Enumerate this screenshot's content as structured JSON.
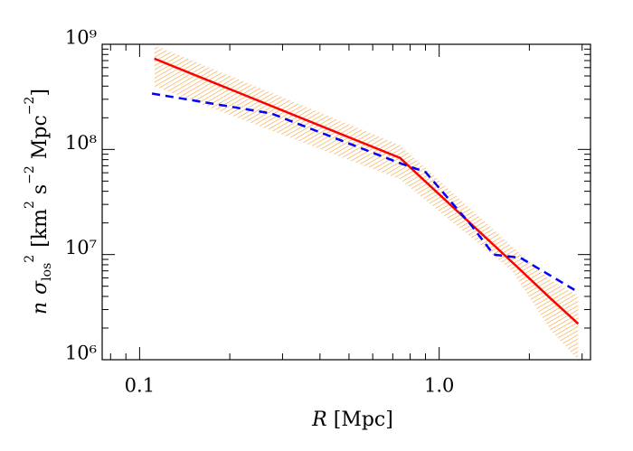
{
  "chart_data": {
    "type": "line",
    "xlabel": [
      "R",
      "[Mpc]"
    ],
    "ylabel": [
      "n",
      "σ",
      "los",
      "2",
      "[km",
      "2",
      "s",
      "−2",
      "Mpc",
      "−2",
      "]"
    ],
    "xscale": "log",
    "yscale": "log",
    "xlim": [
      0.075,
      3.2
    ],
    "ylim": [
      1000000,
      1000000000
    ],
    "xticks": [
      0.1,
      {
        "value": 1.0,
        "label": "1.0"
      }
    ],
    "yticks": [
      {
        "value": 1000000,
        "label": "10⁶"
      },
      {
        "value": 10000000,
        "label": "10⁷"
      },
      {
        "value": 100000000,
        "label": "10⁸"
      },
      {
        "value": 1000000000,
        "label": "10⁹"
      }
    ],
    "minor_ticks": true,
    "band": {
      "color": "#f5a540",
      "x": [
        0.112,
        0.74,
        1.75,
        2.36,
        2.91
      ],
      "upper": [
        980000000,
        110000000,
        12000000,
        5700000,
        4100000
      ],
      "lower": [
        400000000,
        52000000,
        7000000,
        1900000,
        1000000
      ]
    },
    "series": [
      {
        "color": "#ff0000",
        "dash": false,
        "x": [
          0.112,
          0.74,
          1.75,
          2.36,
          2.91
        ],
        "values": [
          730000000,
          83000000,
          8500000,
          3800000,
          2200000
        ]
      },
      {
        "color": "#0000ff",
        "dash": true,
        "x": [
          0.11,
          0.275,
          0.73,
          0.9,
          1.28,
          1.52,
          1.87,
          2.23,
          2.91
        ],
        "values": [
          340000000,
          220000000,
          75000000,
          61000000,
          19000000,
          10000000,
          9300000,
          6900000,
          4400000
        ]
      }
    ]
  }
}
